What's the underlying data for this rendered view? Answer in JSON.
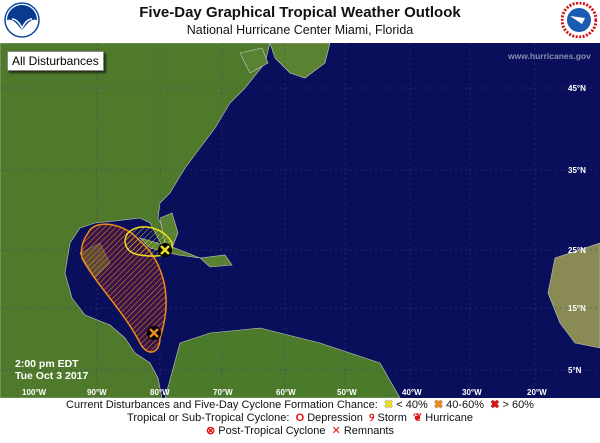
{
  "header": {
    "title": "Five-Day Graphical Tropical Weather Outlook",
    "subtitle": "National Hurricane Center  Miami, Florida",
    "left_logo": "NOAA",
    "right_logo": "National Weather Service"
  },
  "map": {
    "view_button": "All Disturbances",
    "watermark": "www.hurricanes.gov",
    "issued_time": "2:00 pm EDT",
    "issued_date": "Tue Oct 3 2017",
    "latitude_labels": [
      "45°N",
      "35°N",
      "25°N",
      "15°N",
      "5°N"
    ],
    "longitude_labels": [
      "100°W",
      "90°W",
      "80°W",
      "70°W",
      "60°W",
      "50°W",
      "40°W",
      "30°W",
      "20°W"
    ],
    "ocean_color": "#0a0f5c",
    "disturbances": [
      {
        "chance": "< 40%",
        "color": "#f0e020",
        "marker": "x-icon"
      },
      {
        "chance": "40-60%",
        "color": "#f08a1a",
        "marker": "x-icon"
      }
    ]
  },
  "legend": {
    "line1_label": "Current Disturbances and Five-Day Cyclone Formation Chance:",
    "low": "< 40%",
    "medium": "40-60%",
    "high": "> 60%",
    "low_color": "#f0e020",
    "medium_color": "#f08a1a",
    "high_color": "#e01010",
    "line2_label": "Tropical or Sub-Tropical Cyclone:",
    "depression": "Depression",
    "storm": "Storm",
    "hurricane": "Hurricane",
    "post_tropical": "Post-Tropical Cyclone",
    "remnants": "Remnants"
  }
}
